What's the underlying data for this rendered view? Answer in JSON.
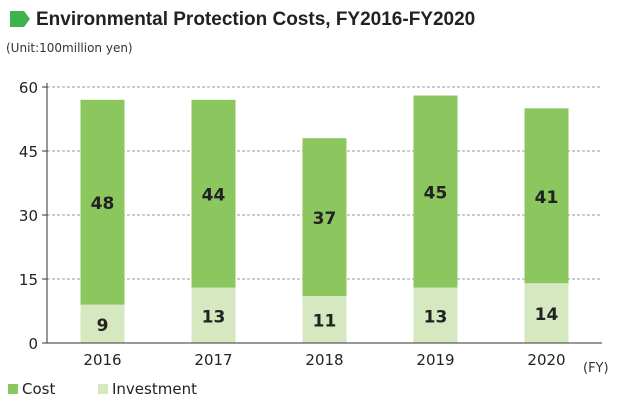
{
  "chart_data": {
    "type": "bar",
    "stacked": true,
    "title": "Environmental Protection Costs, FY2016-FY2020",
    "unit_label": "(Unit:100million yen)",
    "x_unit_label": "(FY)",
    "categories": [
      "2016",
      "2017",
      "2018",
      "2019",
      "2020"
    ],
    "series": [
      {
        "name": "Investment",
        "values": [
          9,
          13,
          11,
          13,
          14
        ]
      },
      {
        "name": "Cost",
        "values": [
          48,
          44,
          37,
          45,
          41
        ]
      }
    ],
    "ylim": [
      0,
      60
    ],
    "yticks": [
      0,
      15,
      30,
      45,
      60
    ],
    "grid": true,
    "legend_position": "bottom-left"
  },
  "colors": {
    "cost": "#8cc65e",
    "investment": "#d6e8c0",
    "title_mark": "#3cb44b",
    "grid": "#9a9a9a",
    "axis": "#333333"
  }
}
